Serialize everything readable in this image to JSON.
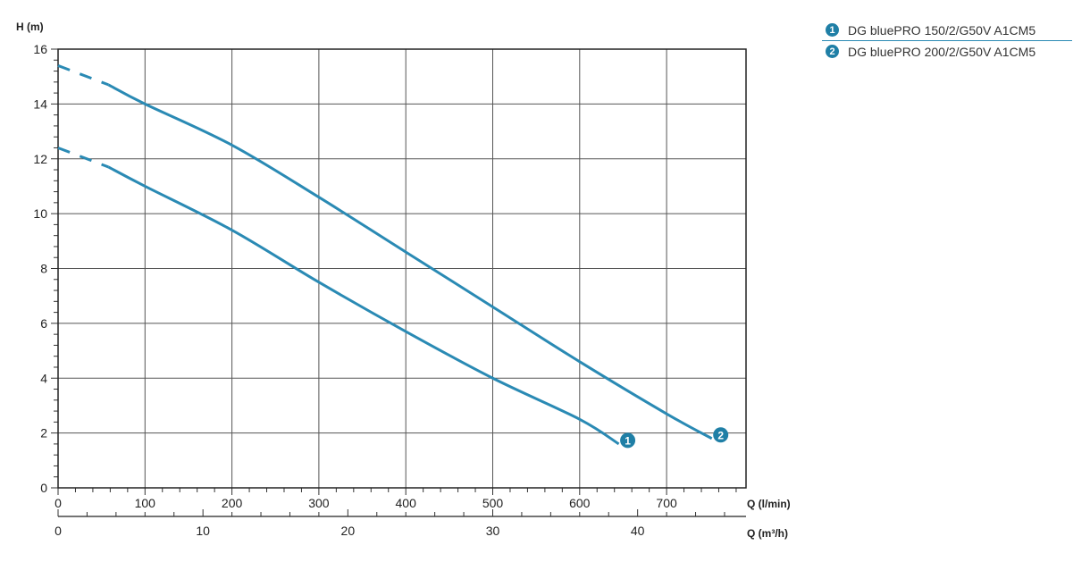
{
  "legend": {
    "items": [
      {
        "badge": "1",
        "label": "DG bluePRO 150/2/G50V A1CM5"
      },
      {
        "badge": "2",
        "label": "DG bluePRO 200/2/G50V A1CM5"
      }
    ]
  },
  "colors": {
    "curve": "#2a8ab4",
    "badge": "#1f7fa6",
    "grid": "#555555"
  },
  "chart_data": {
    "type": "line",
    "ylabel": "H (m)",
    "xlabel": "Q (l/min)",
    "xlabel_secondary": "Q (m³/h)",
    "ylim": [
      0,
      16
    ],
    "xlim": [
      0,
      795
    ],
    "y_ticks": [
      0,
      2,
      4,
      6,
      8,
      10,
      12,
      14,
      16
    ],
    "x_ticks": [
      0,
      100,
      200,
      300,
      400,
      500,
      600,
      700
    ],
    "x2_ticks": [
      0,
      10,
      20,
      30,
      40
    ],
    "grid": true,
    "series": [
      {
        "name": "DG bluePRO 150/2/G50V A1CM5",
        "badge": "1",
        "dashed": [
          [
            0,
            12.4
          ],
          [
            58,
            11.7
          ]
        ],
        "points": [
          [
            58,
            11.7
          ],
          [
            100,
            11.0
          ],
          [
            200,
            9.4
          ],
          [
            300,
            7.5
          ],
          [
            400,
            5.7
          ],
          [
            500,
            4.0
          ],
          [
            600,
            2.5
          ],
          [
            645,
            1.6
          ]
        ]
      },
      {
        "name": "DG bluePRO 200/2/G50V A1CM5",
        "badge": "2",
        "dashed": [
          [
            0,
            15.4
          ],
          [
            58,
            14.7
          ]
        ],
        "points": [
          [
            58,
            14.7
          ],
          [
            100,
            14.0
          ],
          [
            200,
            12.5
          ],
          [
            300,
            10.6
          ],
          [
            400,
            8.6
          ],
          [
            500,
            6.6
          ],
          [
            600,
            4.6
          ],
          [
            700,
            2.7
          ],
          [
            752,
            1.8
          ]
        ]
      }
    ]
  }
}
